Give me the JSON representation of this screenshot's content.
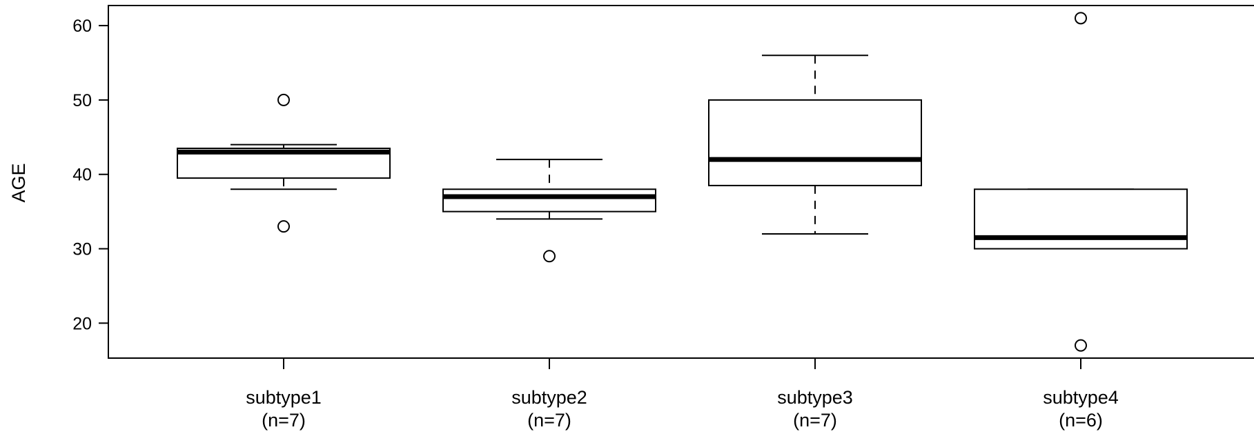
{
  "chart_data": {
    "type": "boxplot",
    "title": "",
    "xlabel": "",
    "ylabel": "AGE",
    "ylim": [
      15.3,
      62.7
    ],
    "yticks": [
      20,
      30,
      40,
      50,
      60
    ],
    "grid": false,
    "categories": [
      {
        "label": "subtype1",
        "n_label": "(n=7)"
      },
      {
        "label": "subtype2",
        "n_label": "(n=7)"
      },
      {
        "label": "subtype3",
        "n_label": "(n=7)"
      },
      {
        "label": "subtype4",
        "n_label": "(n=6)"
      }
    ],
    "boxes": [
      {
        "whisker_low": 38,
        "q1": 39.5,
        "median": 43,
        "q3": 43.5,
        "whisker_high": 44,
        "outliers": [
          50,
          33
        ]
      },
      {
        "whisker_low": 34,
        "q1": 35,
        "median": 37,
        "q3": 38,
        "whisker_high": 42,
        "outliers": [
          29
        ]
      },
      {
        "whisker_low": 32,
        "q1": 38.5,
        "median": 42,
        "q3": 50,
        "whisker_high": 56,
        "outliers": []
      },
      {
        "whisker_low": 30,
        "q1": 30,
        "median": 31.5,
        "q3": 38,
        "whisker_high": 38,
        "outliers": [
          61,
          17
        ]
      }
    ]
  }
}
